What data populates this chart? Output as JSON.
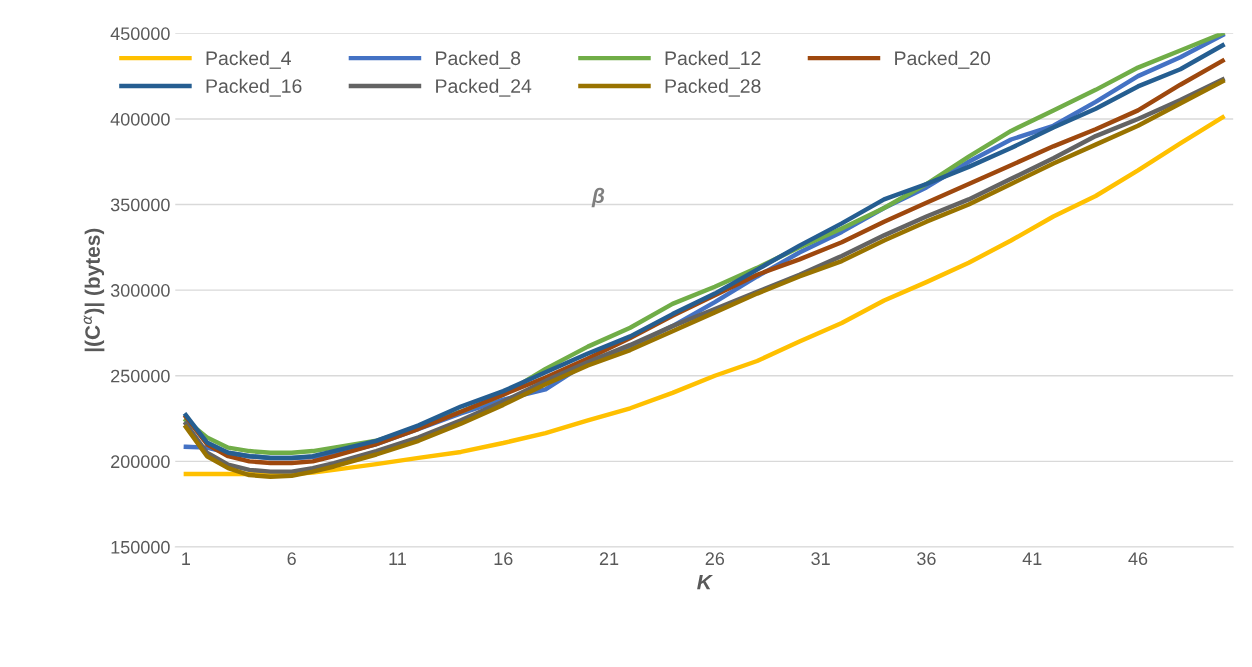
{
  "chart_data": {
    "type": "line",
    "title": "β",
    "xlabel": "K",
    "ylabel": "|(C$^{α}$)| (bytes)",
    "x": [
      1,
      2,
      3,
      4,
      5,
      6,
      7,
      8,
      10,
      12,
      14,
      16,
      18,
      20,
      22,
      24,
      26,
      28,
      30,
      32,
      34,
      36,
      38,
      40,
      42,
      44,
      46,
      48,
      50
    ],
    "xlim": [
      0.5,
      50.5
    ],
    "xticks": [
      1,
      6,
      11,
      16,
      21,
      26,
      31,
      36,
      41,
      46
    ],
    "ylim": [
      150000,
      450000
    ],
    "yticks": [
      150000,
      200000,
      250000,
      300000,
      350000,
      400000,
      450000
    ],
    "grid": "y",
    "legend": "top",
    "marker": "none",
    "line_style": "solid",
    "series": [
      {
        "name": "Packed_4",
        "color": "#ffc000",
        "values": [
          192600,
          192600,
          192600,
          192600,
          192600,
          192600,
          193500,
          195000,
          198400,
          202000,
          205500,
          210700,
          216500,
          224000,
          231000,
          240000,
          250000,
          258600,
          270000,
          280800,
          294000,
          304700,
          316000,
          329000,
          343000,
          355000,
          370000,
          385800,
          401000
        ]
      },
      {
        "name": "Packed_8",
        "color": "#4472c4",
        "values": [
          208500,
          208000,
          205000,
          203000,
          202000,
          202000,
          202500,
          204000,
          210000,
          219000,
          228000,
          236000,
          242000,
          258000,
          267000,
          279000,
          293000,
          308000,
          322000,
          334000,
          348000,
          360000,
          375000,
          388000,
          396000,
          410000,
          425000,
          436000,
          449000
        ]
      },
      {
        "name": "Packed_12",
        "color": "#70ad47",
        "values": [
          224000,
          214000,
          208000,
          206000,
          205000,
          205000,
          206000,
          208000,
          212000,
          220000,
          229000,
          239000,
          254000,
          267000,
          278000,
          292000,
          302000,
          313000,
          325000,
          336000,
          348000,
          362000,
          378000,
          393000,
          405000,
          417000,
          430000,
          440000,
          450000
        ]
      },
      {
        "name": "Packed_20",
        "color": "#9e480e",
        "values": [
          226000,
          210000,
          203000,
          200000,
          199000,
          199000,
          200000,
          203000,
          210000,
          219000,
          229000,
          239000,
          249000,
          260000,
          272000,
          285000,
          297000,
          309000,
          318000,
          328000,
          340000,
          351000,
          362000,
          373000,
          384000,
          394000,
          405000,
          420000,
          434000
        ]
      },
      {
        "name": "Packed_16",
        "color": "#255e91",
        "values": [
          227000,
          211000,
          205000,
          203000,
          202000,
          202000,
          203000,
          206000,
          212000,
          221000,
          232000,
          241000,
          252000,
          263000,
          273000,
          286000,
          298000,
          312000,
          326000,
          339000,
          353000,
          362000,
          372000,
          383000,
          395000,
          406000,
          419000,
          429000,
          443000
        ]
      },
      {
        "name": "Packed_24",
        "color": "#636363",
        "values": [
          222000,
          205000,
          198000,
          195000,
          194000,
          194000,
          196000,
          199000,
          206000,
          214000,
          224000,
          235000,
          247000,
          258000,
          268000,
          279000,
          289000,
          299000,
          309000,
          320000,
          332000,
          343000,
          353000,
          365000,
          377000,
          390000,
          400000,
          411000,
          423000
        ]
      },
      {
        "name": "Packed_28",
        "color": "#997300",
        "values": [
          220000,
          203000,
          196000,
          192000,
          191000,
          191500,
          194000,
          197000,
          204000,
          212000,
          222000,
          233000,
          245000,
          256000,
          265000,
          276000,
          287000,
          298000,
          308000,
          317000,
          329000,
          340000,
          350000,
          362000,
          374000,
          385000,
          396000,
          409000,
          422000
        ]
      }
    ]
  }
}
